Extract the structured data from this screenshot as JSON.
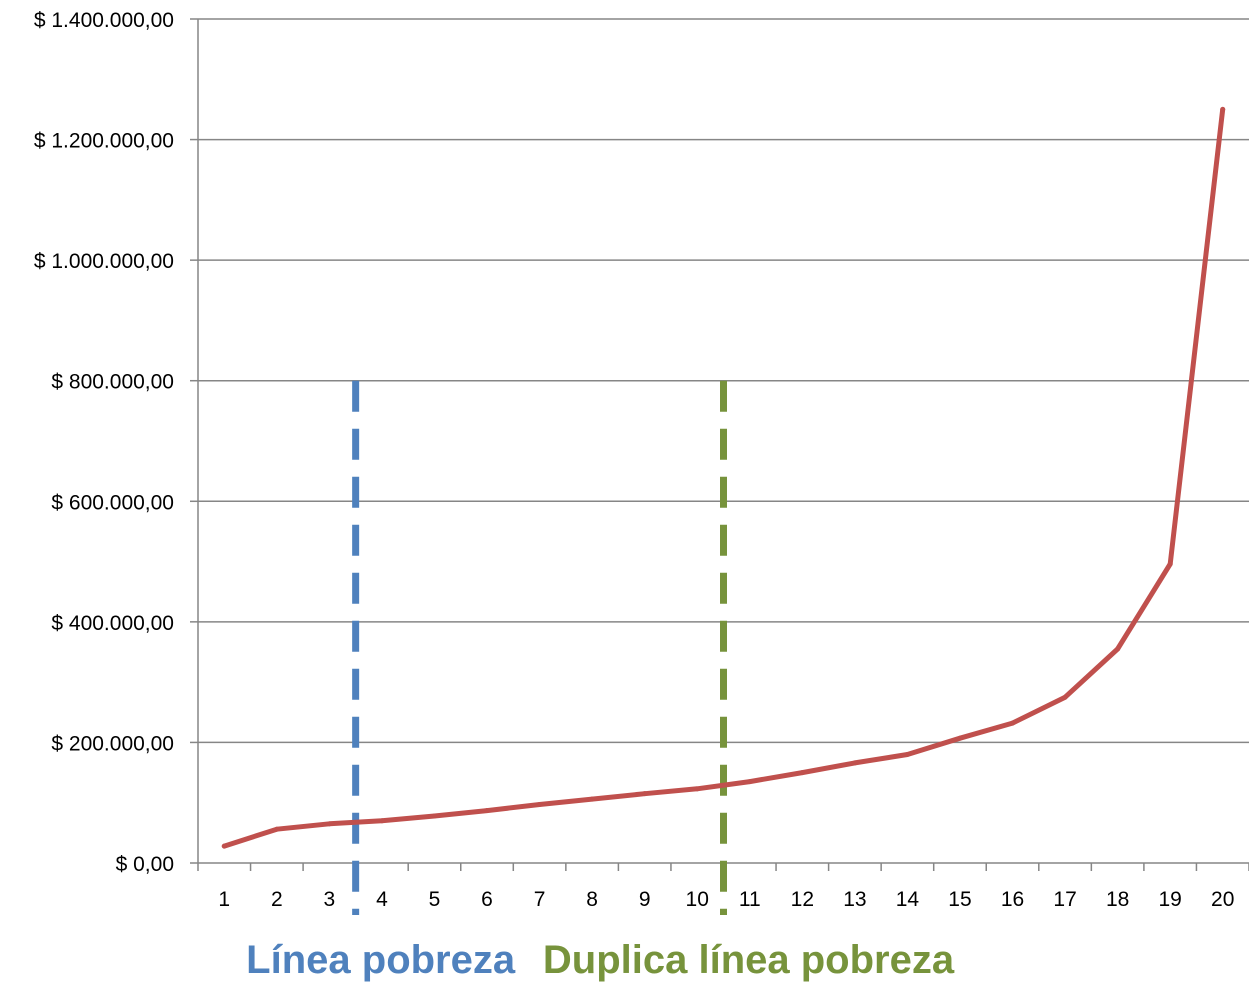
{
  "chart_data": {
    "type": "line",
    "title": "",
    "xlabel": "",
    "ylabel": "",
    "categories": [
      "1",
      "2",
      "3",
      "4",
      "5",
      "6",
      "7",
      "8",
      "9",
      "10",
      "11",
      "12",
      "13",
      "14",
      "15",
      "16",
      "17",
      "18",
      "19",
      "20"
    ],
    "ylim": [
      0,
      1400000
    ],
    "y_ticks": [
      0,
      200000,
      400000,
      600000,
      800000,
      1000000,
      1200000,
      1400000
    ],
    "y_tick_labels": [
      "$ 0,00",
      "$ 200.000,00",
      "$ 400.000,00",
      "$ 600.000,00",
      "$ 800.000,00",
      "$ 1.000.000,00",
      "$ 1.200.000,00",
      "$ 1.400.000,00"
    ],
    "grid": "horizontal",
    "legend": "none",
    "series": [
      {
        "color": "#C0504D",
        "values": [
          28000,
          56000,
          65000,
          70000,
          78000,
          87000,
          97000,
          106000,
          115000,
          123000,
          135000,
          150000,
          166000,
          180000,
          207000,
          232000,
          275000,
          355000,
          496000,
          1250000
        ]
      }
    ],
    "annotations": [
      {
        "label": "Línea pobreza",
        "x_between": [
          "3",
          "4"
        ],
        "y_top": 800000,
        "color": "#4F81BD",
        "style": "dashed"
      },
      {
        "label": "Duplica línea pobreza",
        "x_between": [
          "10",
          "11"
        ],
        "y_top": 800000,
        "color": "#77933C",
        "style": "dashed"
      }
    ]
  }
}
